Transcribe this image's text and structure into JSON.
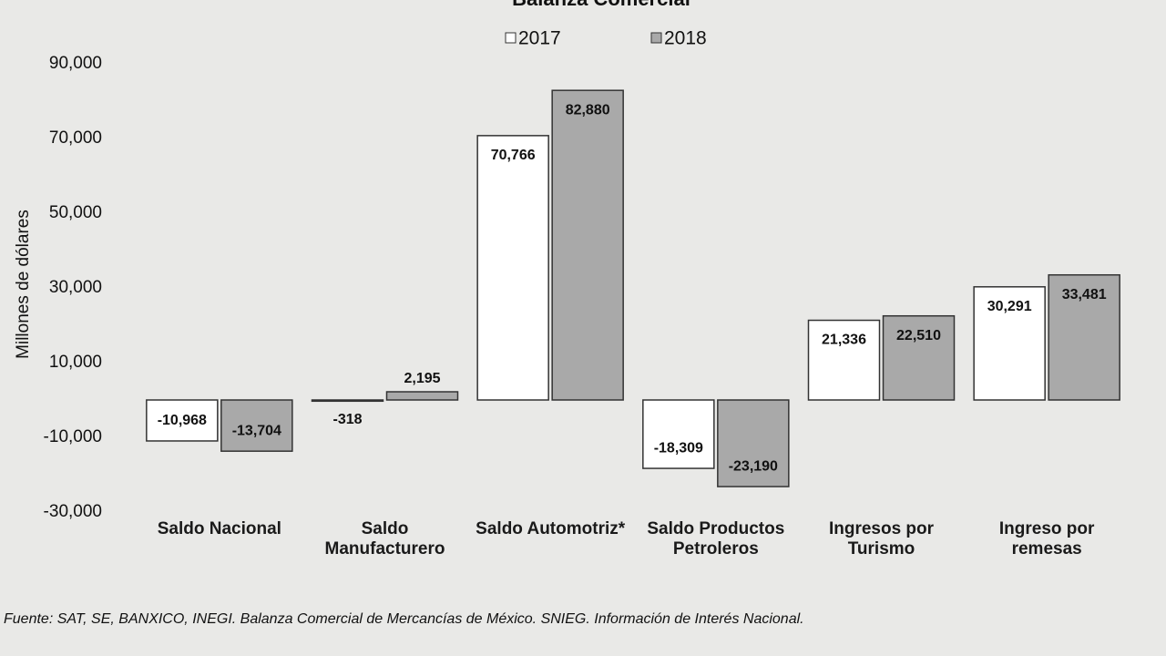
{
  "chart_data": {
    "type": "bar",
    "title": "Balanza Comercial",
    "y_label": "Millones de dólares",
    "categories": [
      "Saldo Nacional",
      "Saldo Manufacturero",
      "Saldo Automotriz*",
      "Saldo Productos Petroleros",
      "Ingresos por Turismo",
      "Ingreso por remesas"
    ],
    "series": [
      {
        "name": "2017",
        "color": "#ffffff",
        "values": [
          -10968,
          -318,
          70766,
          -18309,
          21336,
          30291
        ],
        "value_labels": [
          "-10,968",
          "-318",
          "70,766",
          "-18,309",
          "21,336",
          "30,291"
        ]
      },
      {
        "name": "2018",
        "color": "#a9a9a9",
        "values": [
          -13704,
          2195,
          82880,
          -23190,
          22510,
          33481
        ],
        "value_labels": [
          "-13,704",
          "2,195",
          "82,880",
          "-23,190",
          "22,510",
          "33,481"
        ]
      }
    ],
    "ylim": [
      -30000,
      90000
    ],
    "yticks": [
      {
        "value": -30000,
        "label": "-30,000"
      },
      {
        "value": -10000,
        "label": "-10,000"
      },
      {
        "value": 10000,
        "label": "10,000"
      },
      {
        "value": 30000,
        "label": "30,000"
      },
      {
        "value": 50000,
        "label": "50,000"
      },
      {
        "value": 70000,
        "label": "70,000"
      },
      {
        "value": 90000,
        "label": "90,000"
      }
    ],
    "legend": "top",
    "source": "Fuente: SAT, SE, BANXICO, INEGI. Balanza Comercial de Mercancías de México. SNIEG. Información de Interés Nacional."
  }
}
